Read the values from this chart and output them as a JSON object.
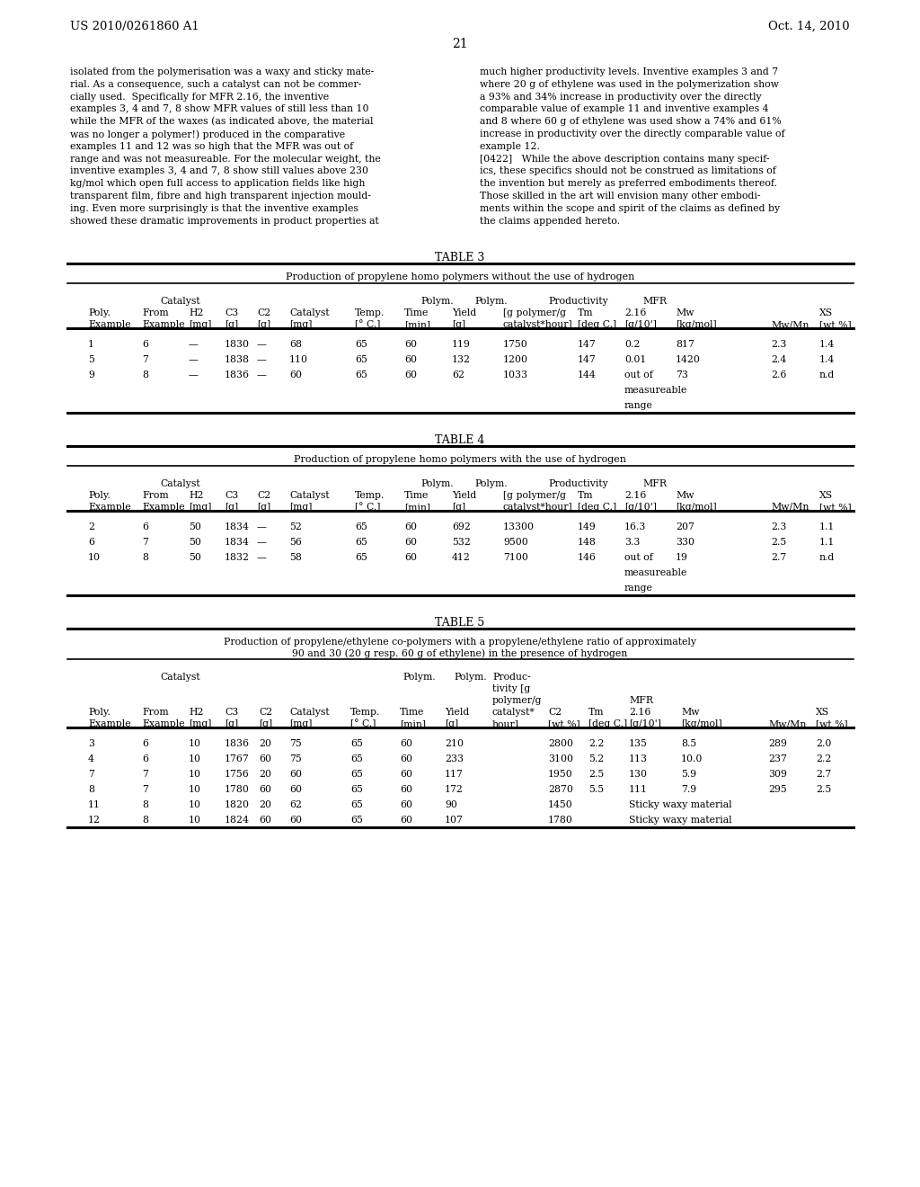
{
  "page_header_left": "US 2010/0261860 A1",
  "page_header_right": "Oct. 14, 2010",
  "page_number": "21",
  "text_left": [
    "isolated from the polymerisation was a waxy and sticky mate-",
    "rial. As a consequence, such a catalyst can not be commer-",
    "cially used.  Specifically for MFR 2.16, the inventive",
    "examples 3, 4 and 7, 8 show MFR values of still less than 10",
    "while the MFR of the waxes (as indicated above, the material",
    "was no longer a polymer!) produced in the comparative",
    "examples 11 and 12 was so high that the MFR was out of",
    "range and was not measureable. For the molecular weight, the",
    "inventive examples 3, 4 and 7, 8 show still values above 230",
    "kg/mol which open full access to application fields like high",
    "transparent film, fibre and high transparent injection mould-",
    "ing. Even more surprisingly is that the inventive examples",
    "showed these dramatic improvements in product properties at"
  ],
  "text_right": [
    "much higher productivity levels. Inventive examples 3 and 7",
    "where 20 g of ethylene was used in the polymerization show",
    "a 93% and 34% increase in productivity over the directly",
    "comparable value of example 11 and inventive examples 4",
    "and 8 where 60 g of ethylene was used show a 74% and 61%",
    "increase in productivity over the directly comparable value of",
    "example 12.",
    "[0422]   While the above description contains many specif-",
    "ics, these specifics should not be construed as limitations of",
    "the invention but merely as preferred embodiments thereof.",
    "Those skilled in the art will envision many other embodi-",
    "ments within the scope and spirit of the claims as defined by",
    "the claims appended hereto."
  ],
  "bg_color": "#ffffff"
}
